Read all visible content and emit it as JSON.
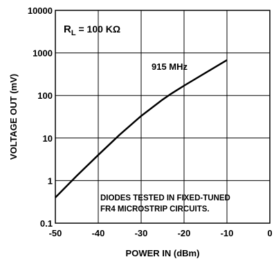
{
  "chart_data": {
    "type": "line",
    "title": "",
    "xlabel": "POWER IN (dBm)",
    "ylabel": "VOLTAGE OUT (mV)",
    "xlim": [
      -50,
      0
    ],
    "ylim": [
      0.1,
      10000
    ],
    "yscale": "log",
    "grid": true,
    "x_ticks": [
      -50,
      -40,
      -30,
      -20,
      -10,
      0
    ],
    "x_tick_labels": [
      "-50",
      "-40",
      "-30",
      "-20",
      "-10",
      "0"
    ],
    "y_ticks": [
      0.1,
      1,
      10,
      100,
      1000,
      10000
    ],
    "y_tick_labels": [
      "0.1",
      "1",
      "10",
      "100",
      "1000",
      "10000"
    ],
    "series": [
      {
        "name": "915 MHz",
        "color": "#000000",
        "x": [
          -50,
          -45,
          -40,
          -35,
          -30,
          -25,
          -23,
          -20,
          -15,
          -10
        ],
        "y": [
          0.4,
          1.3,
          4.0,
          12,
          33,
          80,
          110,
          170,
          340,
          680
        ]
      }
    ],
    "annotations": {
      "load_prefix": "R",
      "load_subscript": "L",
      "load_value": " = 100 KΩ",
      "series_label": "915 MHz",
      "note_line1": "DIODES TESTED IN FIXED-TUNED",
      "note_line2": "FR4 MICROSTRIP CIRCUITS."
    }
  }
}
